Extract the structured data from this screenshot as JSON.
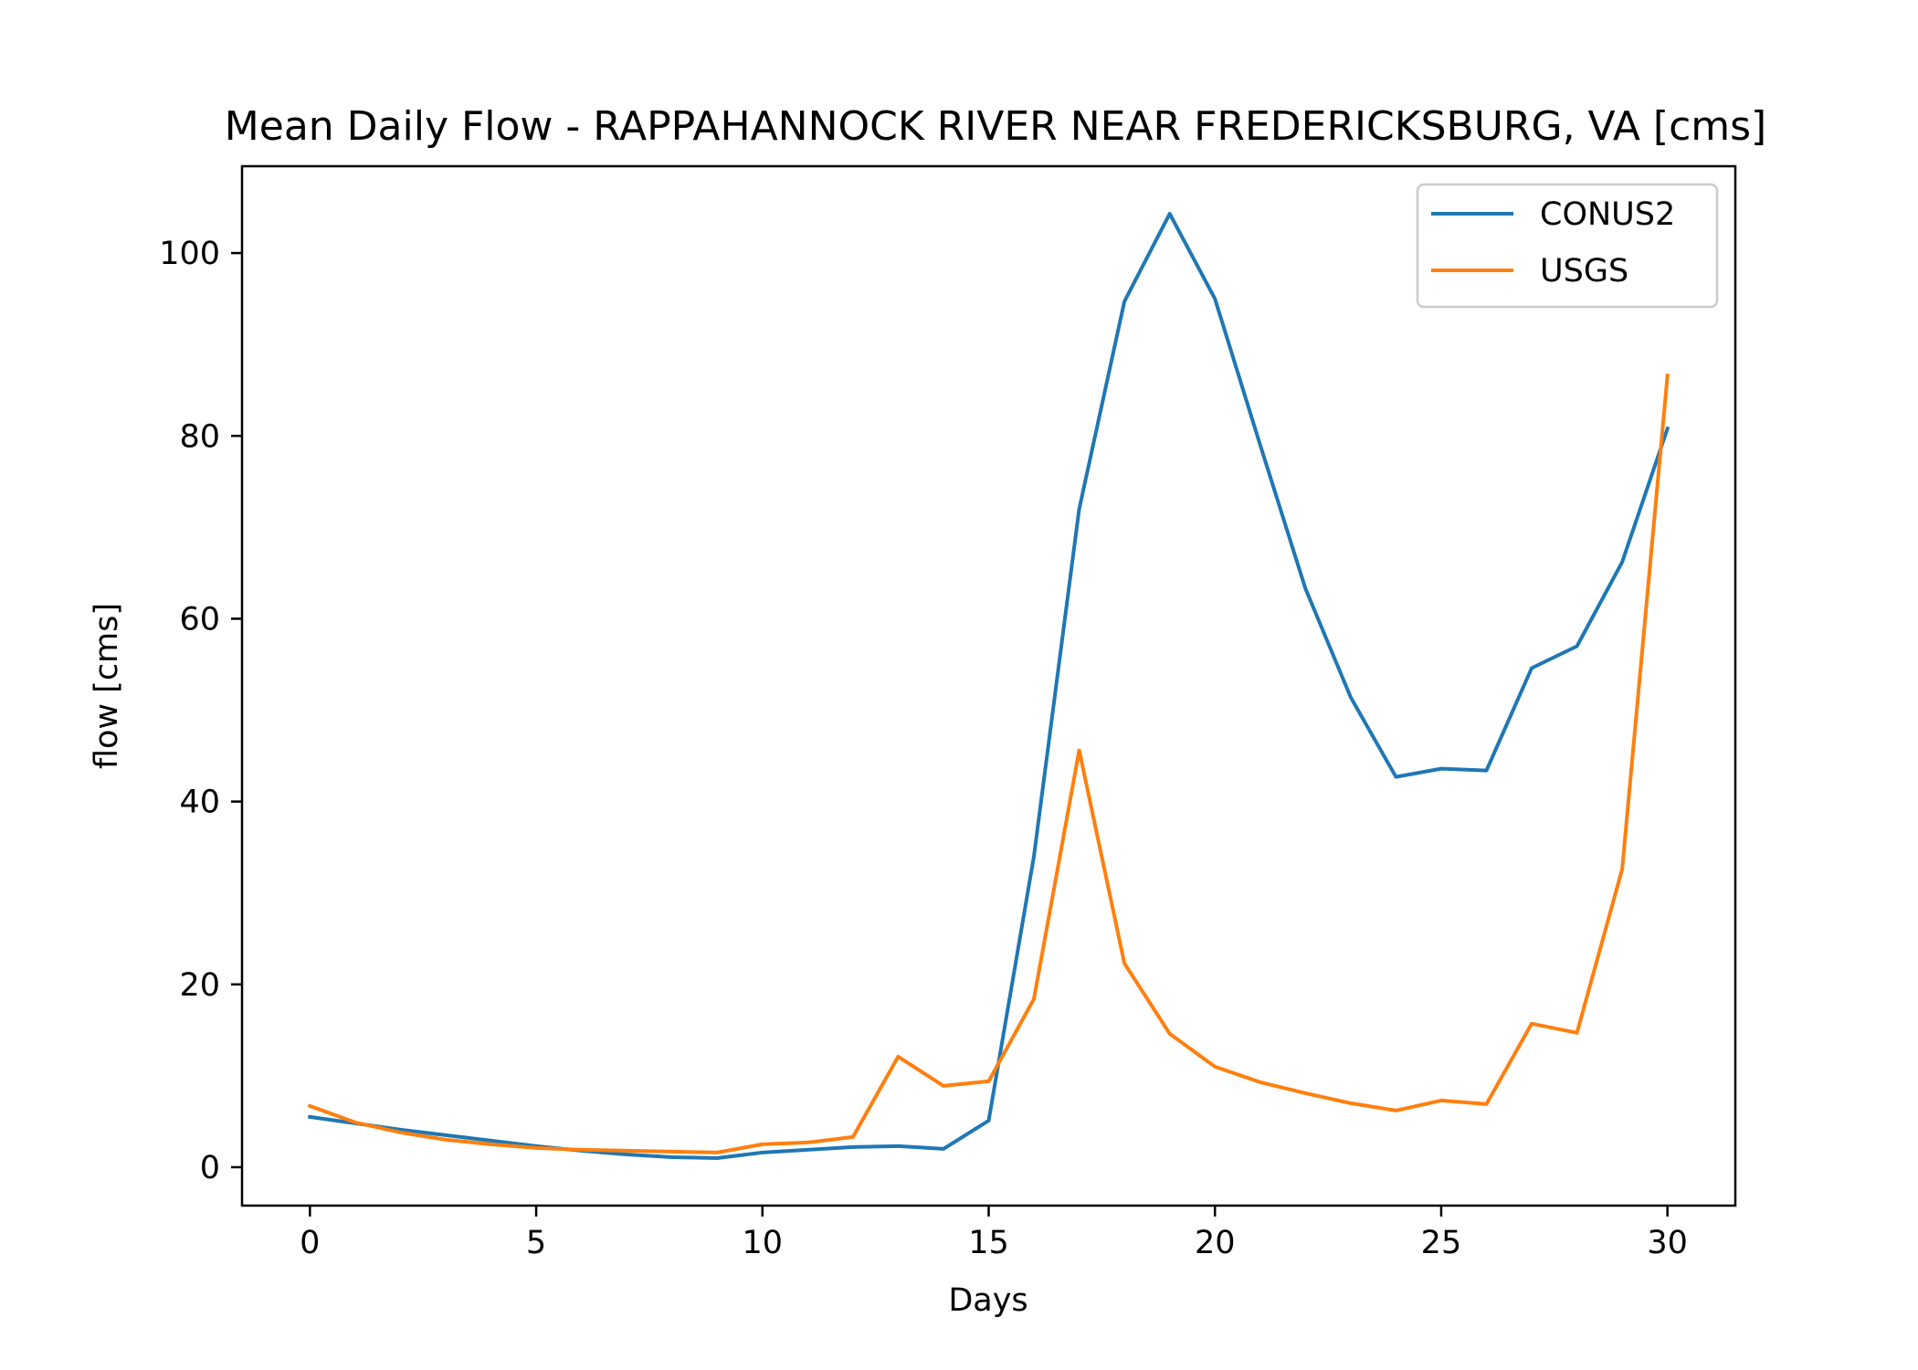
{
  "chart_data": {
    "type": "line",
    "title": "Mean Daily Flow - RAPPAHANNOCK RIVER NEAR FREDERICKSBURG, VA [cms]",
    "xlabel": "Days",
    "ylabel": "flow [cms]",
    "xlim": [
      -1.5,
      31.5
    ],
    "ylim": [
      -4.2,
      109.5
    ],
    "xticks": [
      0,
      5,
      10,
      15,
      20,
      25,
      30
    ],
    "yticks": [
      0,
      20,
      40,
      60,
      80,
      100
    ],
    "grid": false,
    "legend_position": "top-right",
    "x": [
      0,
      1,
      2,
      3,
      4,
      5,
      6,
      7,
      8,
      9,
      10,
      11,
      12,
      13,
      14,
      15,
      16,
      17,
      18,
      19,
      20,
      21,
      22,
      23,
      24,
      25,
      26,
      27,
      28,
      29,
      30
    ],
    "series": [
      {
        "name": "CONUS2",
        "color": "#1f77b4",
        "values": [
          5.5,
          4.8,
          4.1,
          3.5,
          2.9,
          2.3,
          1.8,
          1.4,
          1.1,
          1.0,
          1.6,
          1.9,
          2.2,
          2.3,
          2.0,
          5.1,
          34.0,
          72.0,
          94.7,
          104.3,
          95.0,
          79.0,
          63.3,
          51.4,
          42.7,
          43.6,
          43.4,
          54.6,
          57.0,
          66.2,
          80.8
        ]
      },
      {
        "name": "USGS",
        "color": "#ff7f0e",
        "values": [
          6.7,
          4.9,
          3.8,
          3.0,
          2.5,
          2.1,
          1.9,
          1.8,
          1.7,
          1.6,
          2.5,
          2.7,
          3.3,
          12.1,
          8.9,
          9.4,
          18.4,
          45.6,
          22.3,
          14.6,
          11.0,
          9.3,
          8.1,
          7.0,
          6.2,
          7.3,
          6.9,
          15.7,
          14.7,
          32.6,
          86.6
        ]
      }
    ]
  }
}
